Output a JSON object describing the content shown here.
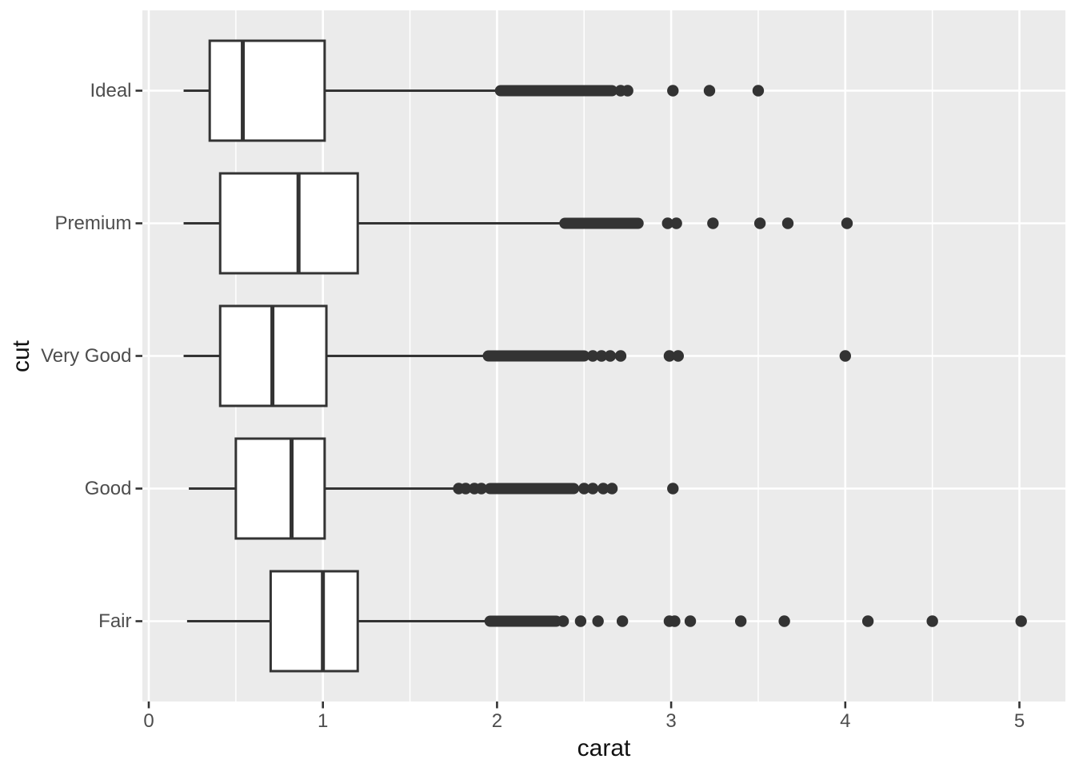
{
  "axes": {
    "x": {
      "title": "carat",
      "tick_labels": [
        "0",
        "1",
        "2",
        "3",
        "4",
        "5"
      ],
      "tick_values": [
        0,
        1,
        2,
        3,
        4,
        5
      ],
      "minor_tick_values": [
        0.5,
        1.5,
        2.5,
        3.5,
        4.5
      ]
    },
    "y": {
      "title": "cut",
      "categories": [
        "Ideal",
        "Premium",
        "Very Good",
        "Good",
        "Fair"
      ]
    }
  },
  "style": {
    "panel_bg": "#ebebeb",
    "grid_color": "#ffffff",
    "box_fill": "#ffffff",
    "line_color": "#333333",
    "tick_mark_color": "#333333",
    "tick_text_color": "#4d4d4d",
    "title_text_color": "#111111"
  },
  "chart_data": {
    "type": "boxplot",
    "orientation": "horizontal",
    "title": "",
    "xlabel": "carat",
    "ylabel": "cut",
    "xlim": [
      -0.04,
      5.26
    ],
    "x_ticks": [
      0,
      1,
      2,
      3,
      4,
      5
    ],
    "x_minor_ticks": [
      0.5,
      1.5,
      2.5,
      3.5,
      4.5
    ],
    "grid": true,
    "legend": false,
    "categories_top_to_bottom": [
      "Ideal",
      "Premium",
      "Very Good",
      "Good",
      "Fair"
    ],
    "series": [
      {
        "cut": "Ideal",
        "whisker_low": 0.2,
        "q1": 0.35,
        "median": 0.54,
        "q3": 1.01,
        "whisker_high": 2.0,
        "outlier_band": [
          2.02,
          2.66
        ],
        "outliers": [
          2.71,
          2.75,
          3.01,
          3.22,
          3.5
        ]
      },
      {
        "cut": "Premium",
        "whisker_low": 0.2,
        "q1": 0.41,
        "median": 0.86,
        "q3": 1.2,
        "whisker_high": 2.37,
        "outlier_band": [
          2.39,
          2.81
        ],
        "outliers": [
          2.98,
          3.03,
          3.24,
          3.51,
          3.67,
          4.01
        ]
      },
      {
        "cut": "Very Good",
        "whisker_low": 0.2,
        "q1": 0.41,
        "median": 0.71,
        "q3": 1.02,
        "whisker_high": 1.92,
        "outlier_band": [
          1.95,
          2.5
        ],
        "outliers": [
          2.55,
          2.6,
          2.65,
          2.71,
          2.99,
          3.04,
          4.0
        ]
      },
      {
        "cut": "Good",
        "whisker_low": 0.23,
        "q1": 0.5,
        "median": 0.82,
        "q3": 1.01,
        "whisker_high": 1.76,
        "outlier_band": [
          1.96,
          2.44
        ],
        "outliers": [
          1.78,
          1.82,
          1.87,
          1.91,
          2.5,
          2.55,
          2.61,
          2.66,
          3.01
        ]
      },
      {
        "cut": "Fair",
        "whisker_low": 0.22,
        "q1": 0.7,
        "median": 1.0,
        "q3": 1.2,
        "whisker_high": 1.95,
        "outlier_band": [
          1.96,
          2.34
        ],
        "outliers": [
          2.38,
          2.48,
          2.58,
          2.72,
          2.99,
          3.02,
          3.11,
          3.4,
          3.65,
          4.13,
          4.5,
          5.01
        ]
      }
    ]
  }
}
